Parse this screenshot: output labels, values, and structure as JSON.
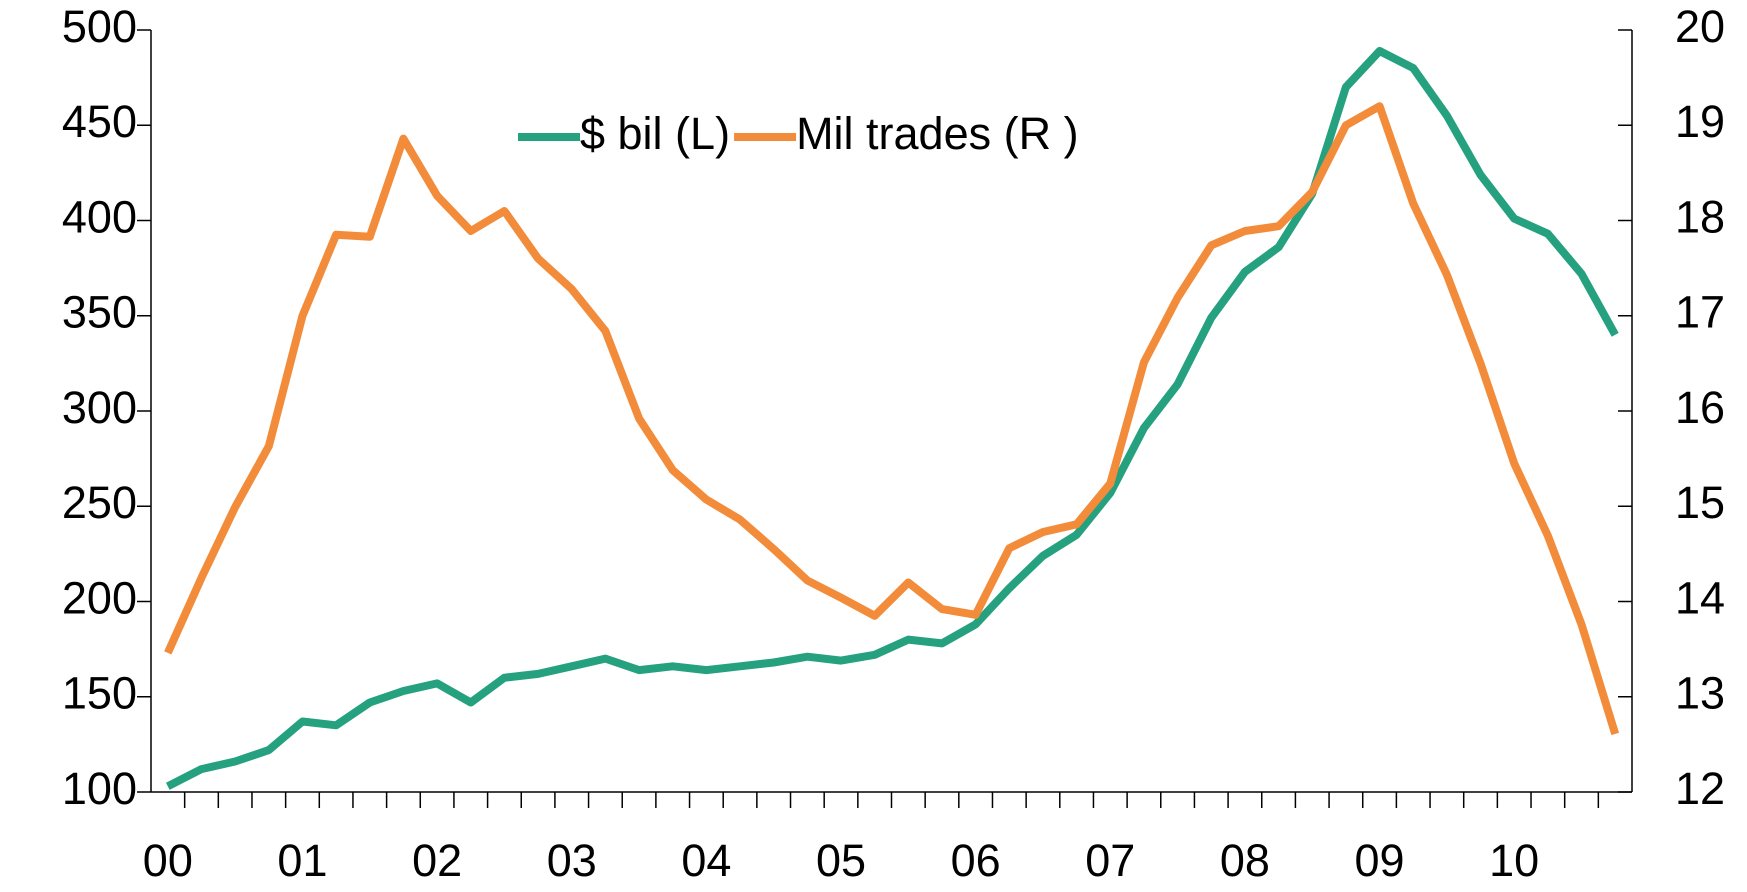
{
  "chart_data": {
    "type": "line",
    "categories": [
      "00",
      null,
      null,
      null,
      "01",
      null,
      null,
      null,
      "02",
      null,
      null,
      null,
      "03",
      null,
      null,
      null,
      "04",
      null,
      null,
      null,
      "05",
      null,
      null,
      null,
      "06",
      null,
      null,
      null,
      "07",
      null,
      null,
      null,
      "08",
      null,
      null,
      null,
      "09",
      null,
      null,
      null,
      "10",
      null,
      null,
      null
    ],
    "series": [
      {
        "name": "$ bil (L)",
        "color": "#26a17f",
        "axis": "y",
        "values": [
          103,
          112,
          116,
          122,
          137,
          135,
          147,
          153,
          157,
          147,
          160,
          162,
          166,
          170,
          164,
          166,
          164,
          166,
          168,
          171,
          169,
          172,
          180,
          178,
          188,
          207,
          224,
          235,
          257,
          291,
          314,
          349,
          373,
          386,
          414,
          470,
          489,
          480,
          455,
          424,
          401,
          393,
          372,
          340
        ]
      },
      {
        "name": "Mil trades (R )",
        "color": "#f28c3a",
        "axis": "y2",
        "values": [
          13.46,
          14.25,
          14.99,
          15.63,
          17.0,
          17.85,
          17.83,
          18.86,
          18.26,
          17.89,
          18.1,
          17.6,
          17.28,
          16.84,
          15.92,
          15.38,
          15.07,
          14.86,
          14.55,
          14.22,
          14.04,
          13.85,
          14.2,
          13.92,
          13.86,
          14.56,
          14.73,
          14.81,
          15.24,
          16.51,
          17.19,
          17.74,
          17.89,
          17.94,
          18.3,
          19.0,
          19.2,
          18.18,
          17.43,
          16.5,
          15.45,
          14.69,
          13.76,
          12.61
        ]
      }
    ],
    "ylim": [
      100,
      500
    ],
    "yticks": [
      100,
      150,
      200,
      250,
      300,
      350,
      400,
      450,
      500
    ],
    "y2lim": [
      12,
      20
    ],
    "y2ticks": [
      12,
      13,
      14,
      15,
      16,
      17,
      18,
      19,
      20
    ],
    "grid": false,
    "legend": "top"
  }
}
